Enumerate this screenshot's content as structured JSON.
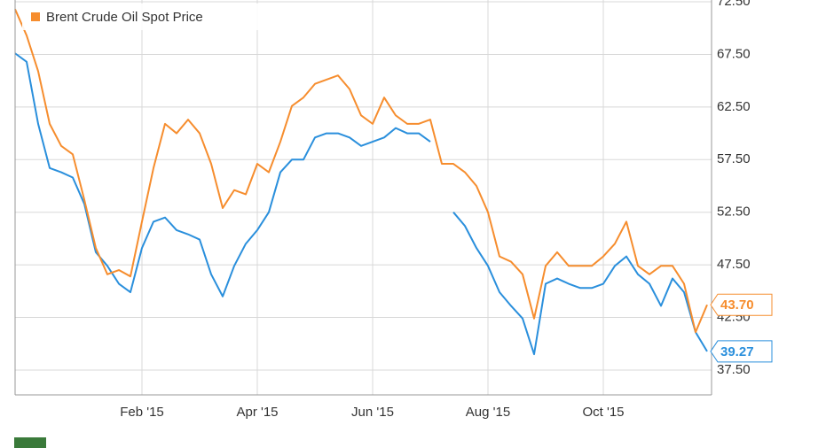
{
  "chart_data": {
    "type": "line",
    "categories": [
      null,
      null,
      null,
      null,
      null,
      null,
      null,
      null,
      null,
      null,
      null,
      "Feb '15",
      null,
      null,
      null,
      null,
      null,
      null,
      null,
      null,
      null,
      "Apr '15",
      null,
      null,
      null,
      null,
      null,
      null,
      null,
      null,
      null,
      "Jun '15",
      null,
      null,
      null,
      null,
      null,
      null,
      null,
      null,
      null,
      "Aug '15",
      null,
      null,
      null,
      null,
      null,
      null,
      null,
      null,
      null,
      "Oct '15",
      null,
      null,
      null,
      null,
      null,
      null,
      null,
      null,
      null
    ],
    "series": [
      {
        "color": "#2a8fdc",
        "values": [
          67.6,
          66.8,
          60.9,
          56.7,
          56.3,
          55.8,
          53.3,
          48.7,
          47.4,
          45.7,
          44.9,
          49.1,
          51.6,
          52.0,
          50.8,
          50.4,
          49.9,
          46.6,
          44.5,
          47.4,
          49.5,
          50.8,
          52.5,
          56.3,
          57.5,
          57.5,
          59.6,
          60.0,
          60.0,
          59.6,
          58.8,
          59.2,
          59.6,
          60.5,
          60.0,
          60.0,
          59.2,
          null,
          52.5,
          51.2,
          49.1,
          47.4,
          44.9,
          43.6,
          42.4,
          39.0,
          45.7,
          46.2,
          45.7,
          45.3,
          45.3,
          45.7,
          47.4,
          48.3,
          46.6,
          45.7,
          43.6,
          46.2,
          44.9,
          41.1,
          39.27
        ],
        "value_labels": [
          null,
          null,
          null,
          null,
          null,
          null,
          null,
          null,
          null,
          null,
          null,
          null,
          null,
          null,
          null,
          null,
          null,
          null,
          null,
          null,
          null,
          null,
          null,
          null,
          null,
          null,
          null,
          null,
          null,
          null,
          null,
          null,
          null,
          null,
          null,
          null,
          null,
          null,
          null,
          null,
          null,
          null,
          null,
          null,
          null,
          null,
          null,
          null,
          null,
          null,
          null,
          null,
          null,
          null,
          null,
          null,
          null,
          null,
          null,
          null,
          "39.27"
        ]
      },
      {
        "name": "Brent Crude Oil Spot Price",
        "color": "#f68d2e",
        "values": [
          71.8,
          69.3,
          65.9,
          60.9,
          58.8,
          58.0,
          53.7,
          49.1,
          46.6,
          47.0,
          46.4,
          51.6,
          56.7,
          60.9,
          60.0,
          61.3,
          60.0,
          57.1,
          52.9,
          54.6,
          54.2,
          57.1,
          56.3,
          59.2,
          62.6,
          63.4,
          64.7,
          65.1,
          65.5,
          64.2,
          61.7,
          60.9,
          63.4,
          61.7,
          60.9,
          60.9,
          61.3,
          57.1,
          57.1,
          56.3,
          55.0,
          52.5,
          48.3,
          47.8,
          46.6,
          42.4,
          47.4,
          48.7,
          47.4,
          47.4,
          47.4,
          48.3,
          49.5,
          51.6,
          47.4,
          46.6,
          47.4,
          47.4,
          45.7,
          41.1,
          43.7
        ],
        "value_labels": [
          null,
          null,
          null,
          null,
          null,
          null,
          null,
          null,
          null,
          null,
          null,
          null,
          null,
          null,
          null,
          null,
          null,
          null,
          null,
          null,
          null,
          null,
          null,
          null,
          null,
          null,
          null,
          null,
          null,
          null,
          null,
          null,
          null,
          null,
          null,
          null,
          null,
          null,
          null,
          null,
          null,
          null,
          null,
          null,
          null,
          null,
          null,
          null,
          null,
          null,
          null,
          null,
          null,
          null,
          null,
          null,
          null,
          null,
          null,
          null,
          "43.70"
        ]
      }
    ],
    "ylim": [
      35.14,
      72.67
    ],
    "yticks": [
      {
        "value": 37.5,
        "label": "37.50"
      },
      {
        "value": 42.5,
        "label": "42.50"
      },
      {
        "value": 47.5,
        "label": "47.50"
      },
      {
        "value": 52.5,
        "label": "52.50"
      },
      {
        "value": 57.5,
        "label": "57.50"
      },
      {
        "value": 62.5,
        "label": "62.50"
      },
      {
        "value": 67.5,
        "label": "67.50"
      },
      {
        "value": 72.5,
        "label": "72.50"
      }
    ],
    "grid": true
  }
}
